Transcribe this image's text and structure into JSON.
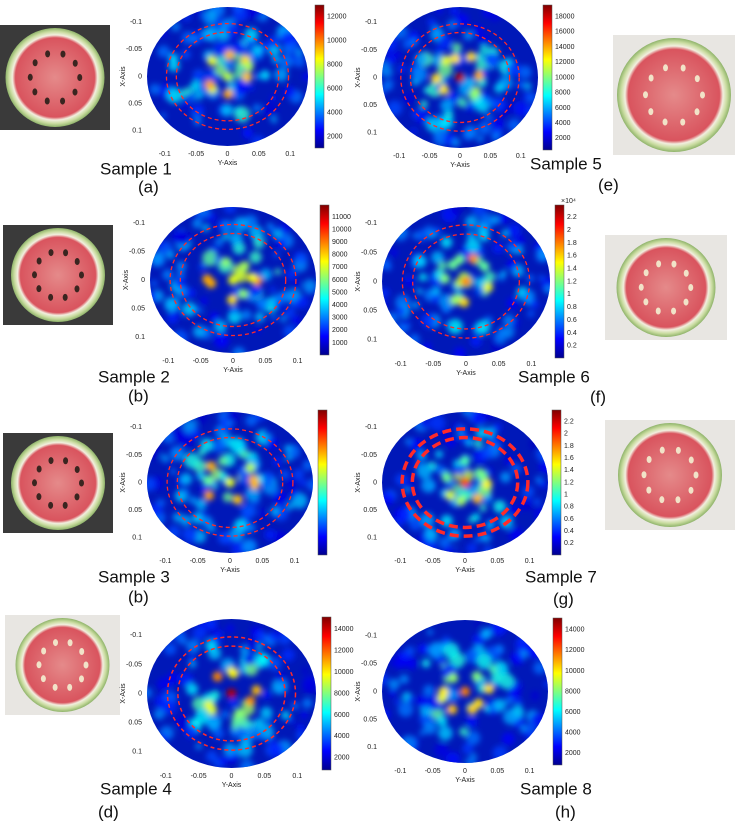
{
  "panels": [
    {
      "sample": "Sample 1",
      "letter": "(a)",
      "x_label": "Y-Axis",
      "y_label": "X-Axis",
      "x_ticks": [
        "-0.1",
        "-0.05",
        "0",
        "0.05",
        "0.1"
      ],
      "y_ticks": [
        "-0.1",
        "-0.05",
        "0",
        "0.05",
        "0.1"
      ],
      "colorbar_ticks": [
        2000,
        4000,
        6000,
        8000,
        10000,
        12000
      ]
    },
    {
      "sample": "Sample 2",
      "letter": "(b)",
      "x_label": "Y-Axis",
      "y_label": "X-Axis",
      "x_ticks": [
        "-0.1",
        "-0.05",
        "0",
        "0.05",
        "0.1"
      ],
      "y_ticks": [
        "-0.1",
        "-0.05",
        "0",
        "0.05",
        "0.1"
      ],
      "colorbar_ticks": [
        1000,
        2000,
        3000,
        4000,
        5000,
        6000,
        7000,
        8000,
        9000,
        10000,
        11000
      ]
    },
    {
      "sample": "Sample 3",
      "letter": "(b)",
      "x_label": "Y-Axis",
      "y_label": "X-Axis",
      "x_ticks": [
        "-0.1",
        "-0.05",
        "0",
        "0.05",
        "0.1"
      ],
      "y_ticks": [
        "-0.1",
        "-0.05",
        "0",
        "0.05",
        "0.1"
      ]
    },
    {
      "sample": "Sample 4",
      "letter": "(d)",
      "x_label": "Y-Axis",
      "y_label": "X-Axis",
      "x_ticks": [
        "-0.1",
        "-0.05",
        "0",
        "0.05",
        "0.1"
      ],
      "y_ticks": [
        "-0.1",
        "-0.05",
        "0",
        "0.05",
        "0.1"
      ],
      "colorbar_ticks": [
        2000,
        4000,
        6000,
        8000,
        10000,
        12000,
        14000
      ]
    },
    {
      "sample": "Sample 5",
      "letter": "(e)",
      "x_label": "Y-Axis",
      "y_label": "X-Axis",
      "x_ticks": [
        "-0.1",
        "-0.05",
        "0",
        "0.05",
        "0.1"
      ],
      "y_ticks": [
        "-0.1",
        "-0.05",
        "0",
        "0.05",
        "0.1"
      ],
      "colorbar_ticks": [
        2000,
        4000,
        6000,
        8000,
        10000,
        12000,
        14000,
        16000,
        18000
      ]
    },
    {
      "sample": "Sample 6",
      "letter": "(f)",
      "x_label": "Y-Axis",
      "y_label": "X-Axis",
      "x_ticks": [
        "-0.1",
        "-0.05",
        "0",
        "0.05",
        "0.1"
      ],
      "y_ticks": [
        "-0.1",
        "-0.05",
        "0",
        "0.05",
        "0.1"
      ],
      "colorbar_ticks": [
        0.2,
        0.4,
        0.6,
        0.8,
        1,
        1.2,
        1.4,
        1.6,
        1.8,
        2,
        2.2
      ],
      "colorbar_scale": "×10⁴"
    },
    {
      "sample": "Sample 7",
      "letter": "(g)",
      "x_label": "Y-Axis",
      "y_label": "X-Axis",
      "x_ticks": [
        "-0.1",
        "-0.05",
        "0",
        "0.05",
        "0.1"
      ],
      "y_ticks": [
        "-0.1",
        "-0.05",
        "0",
        "0.05",
        "0.1"
      ],
      "colorbar_ticks": [
        0.2,
        0.4,
        0.6,
        0.8,
        1,
        1.2,
        1.4,
        1.6,
        1.8,
        2,
        2.2
      ]
    },
    {
      "sample": "Sample 8",
      "letter": "(h)",
      "x_label": "Y-Axis",
      "y_label": "X-Axis",
      "x_ticks": [
        "-0.1",
        "-0.05",
        "0",
        "0.05",
        "0.1"
      ],
      "y_ticks": [
        "-0.1",
        "-0.05",
        "0",
        "0.05",
        "0.1"
      ],
      "colorbar_ticks": [
        2000,
        4000,
        6000,
        8000,
        10000,
        12000,
        14000
      ]
    }
  ]
}
